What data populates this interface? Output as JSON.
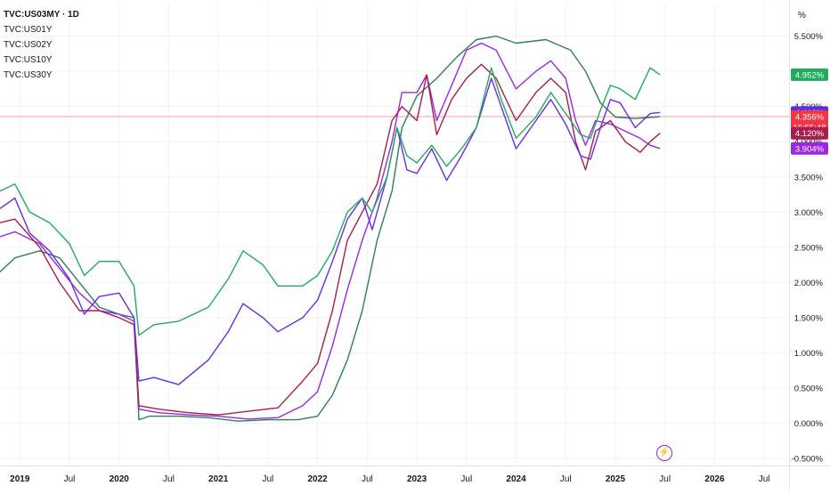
{
  "legend": {
    "main": "TVC:US03MY · 1D",
    "items": [
      "TVC:US01Y",
      "TVC:US02Y",
      "TVC:US10Y",
      "TVC:US30Y"
    ]
  },
  "price_axis": {
    "unit_label": "%",
    "ticks": [
      "5.500%",
      "5.000%",
      "4.500%",
      "4.000%",
      "3.500%",
      "3.000%",
      "2.500%",
      "2.000%",
      "1.500%",
      "1.000%",
      "0.500%",
      "0.000%",
      "-0.500%"
    ]
  },
  "time_axis": {
    "ticks": [
      "2019",
      "Jul",
      "2020",
      "Jul",
      "2021",
      "Jul",
      "2022",
      "Jul",
      "2023",
      "Jul",
      "2024",
      "Jul",
      "2025",
      "Jul",
      "2026",
      "Jul"
    ]
  },
  "badges": [
    {
      "name": "badge-us30y",
      "label": "4.952%",
      "color": "#22ab5d"
    },
    {
      "name": "badge-us10y",
      "label": "4.416%",
      "color": "#5b2ee0"
    },
    {
      "name": "badge-us03my",
      "label": "4.356%",
      "sublabel": "16:55:48",
      "color": "#f23645"
    },
    {
      "name": "badge-us02y",
      "label": "4.120%",
      "color": "#a81d4f"
    },
    {
      "name": "badge-us01y",
      "label": "3.904%",
      "color": "#9c27e0"
    }
  ],
  "flash_icon": "lightning-icon",
  "chart_data": {
    "type": "line",
    "title": "TVC:US03MY · 1D",
    "ylabel": "%",
    "ylim": [
      -0.6,
      5.95
    ],
    "xlim": [
      2018.8,
      2026.75
    ],
    "series": [
      {
        "name": "TVC:US03MY",
        "color": "#2e7d5b",
        "points": [
          [
            2018.8,
            2.15
          ],
          [
            2018.95,
            2.35
          ],
          [
            2019.2,
            2.45
          ],
          [
            2019.4,
            2.35
          ],
          [
            2019.6,
            2.0
          ],
          [
            2019.8,
            1.65
          ],
          [
            2020.0,
            1.55
          ],
          [
            2020.15,
            1.5
          ],
          [
            2020.2,
            0.05
          ],
          [
            2020.3,
            0.1
          ],
          [
            2020.6,
            0.1
          ],
          [
            2020.9,
            0.08
          ],
          [
            2021.2,
            0.03
          ],
          [
            2021.5,
            0.05
          ],
          [
            2021.8,
            0.05
          ],
          [
            2022.0,
            0.1
          ],
          [
            2022.15,
            0.4
          ],
          [
            2022.3,
            0.9
          ],
          [
            2022.45,
            1.6
          ],
          [
            2022.6,
            2.6
          ],
          [
            2022.75,
            3.3
          ],
          [
            2022.85,
            4.2
          ],
          [
            2023.0,
            4.65
          ],
          [
            2023.2,
            4.9
          ],
          [
            2023.4,
            5.2
          ],
          [
            2023.6,
            5.45
          ],
          [
            2023.8,
            5.5
          ],
          [
            2024.0,
            5.4
          ],
          [
            2024.3,
            5.45
          ],
          [
            2024.55,
            5.3
          ],
          [
            2024.7,
            5.0
          ],
          [
            2024.85,
            4.55
          ],
          [
            2025.0,
            4.35
          ],
          [
            2025.2,
            4.33
          ],
          [
            2025.4,
            4.35
          ],
          [
            2025.45,
            4.356
          ]
        ]
      },
      {
        "name": "TVC:US01Y",
        "color": "#9c27e0",
        "points": [
          [
            2018.8,
            2.65
          ],
          [
            2018.95,
            2.72
          ],
          [
            2019.2,
            2.55
          ],
          [
            2019.4,
            2.2
          ],
          [
            2019.6,
            1.85
          ],
          [
            2019.8,
            1.6
          ],
          [
            2020.0,
            1.55
          ],
          [
            2020.15,
            1.45
          ],
          [
            2020.2,
            0.2
          ],
          [
            2020.4,
            0.15
          ],
          [
            2020.7,
            0.12
          ],
          [
            2021.0,
            0.1
          ],
          [
            2021.3,
            0.06
          ],
          [
            2021.6,
            0.08
          ],
          [
            2021.85,
            0.25
          ],
          [
            2022.0,
            0.45
          ],
          [
            2022.15,
            1.1
          ],
          [
            2022.3,
            1.9
          ],
          [
            2022.45,
            2.6
          ],
          [
            2022.6,
            3.2
          ],
          [
            2022.75,
            4.0
          ],
          [
            2022.85,
            4.7
          ],
          [
            2023.0,
            4.7
          ],
          [
            2023.1,
            4.95
          ],
          [
            2023.2,
            4.3
          ],
          [
            2023.35,
            4.8
          ],
          [
            2023.5,
            5.3
          ],
          [
            2023.65,
            5.4
          ],
          [
            2023.8,
            5.3
          ],
          [
            2024.0,
            4.75
          ],
          [
            2024.2,
            5.0
          ],
          [
            2024.35,
            5.15
          ],
          [
            2024.5,
            4.9
          ],
          [
            2024.6,
            4.3
          ],
          [
            2024.7,
            3.95
          ],
          [
            2024.8,
            4.3
          ],
          [
            2024.95,
            4.25
          ],
          [
            2025.1,
            4.15
          ],
          [
            2025.25,
            4.05
          ],
          [
            2025.35,
            3.95
          ],
          [
            2025.45,
            3.904
          ]
        ]
      },
      {
        "name": "TVC:US02Y",
        "color": "#a81d4f",
        "points": [
          [
            2018.8,
            2.85
          ],
          [
            2018.95,
            2.9
          ],
          [
            2019.2,
            2.5
          ],
          [
            2019.4,
            2.0
          ],
          [
            2019.6,
            1.6
          ],
          [
            2019.8,
            1.6
          ],
          [
            2020.0,
            1.5
          ],
          [
            2020.15,
            1.4
          ],
          [
            2020.2,
            0.25
          ],
          [
            2020.4,
            0.2
          ],
          [
            2020.7,
            0.15
          ],
          [
            2021.0,
            0.12
          ],
          [
            2021.3,
            0.17
          ],
          [
            2021.6,
            0.22
          ],
          [
            2021.85,
            0.6
          ],
          [
            2022.0,
            0.85
          ],
          [
            2022.15,
            1.6
          ],
          [
            2022.3,
            2.6
          ],
          [
            2022.45,
            3.0
          ],
          [
            2022.6,
            3.4
          ],
          [
            2022.75,
            4.3
          ],
          [
            2022.85,
            4.5
          ],
          [
            2023.0,
            4.3
          ],
          [
            2023.1,
            4.95
          ],
          [
            2023.2,
            4.1
          ],
          [
            2023.35,
            4.6
          ],
          [
            2023.5,
            4.9
          ],
          [
            2023.65,
            5.1
          ],
          [
            2023.8,
            4.9
          ],
          [
            2024.0,
            4.3
          ],
          [
            2024.2,
            4.7
          ],
          [
            2024.35,
            4.9
          ],
          [
            2024.5,
            4.7
          ],
          [
            2024.6,
            4.0
          ],
          [
            2024.7,
            3.6
          ],
          [
            2024.8,
            4.15
          ],
          [
            2024.95,
            4.3
          ],
          [
            2025.1,
            4.0
          ],
          [
            2025.25,
            3.85
          ],
          [
            2025.35,
            4.0
          ],
          [
            2025.45,
            4.12
          ]
        ]
      },
      {
        "name": "TVC:US10Y",
        "color": "#6a2be8",
        "points": [
          [
            2018.8,
            3.05
          ],
          [
            2018.95,
            3.2
          ],
          [
            2019.1,
            2.7
          ],
          [
            2019.3,
            2.45
          ],
          [
            2019.5,
            2.05
          ],
          [
            2019.65,
            1.55
          ],
          [
            2019.8,
            1.8
          ],
          [
            2020.0,
            1.85
          ],
          [
            2020.15,
            1.5
          ],
          [
            2020.2,
            0.6
          ],
          [
            2020.35,
            0.65
          ],
          [
            2020.6,
            0.55
          ],
          [
            2020.9,
            0.9
          ],
          [
            2021.1,
            1.3
          ],
          [
            2021.25,
            1.7
          ],
          [
            2021.45,
            1.5
          ],
          [
            2021.6,
            1.3
          ],
          [
            2021.85,
            1.5
          ],
          [
            2022.0,
            1.75
          ],
          [
            2022.15,
            2.3
          ],
          [
            2022.3,
            2.9
          ],
          [
            2022.45,
            3.2
          ],
          [
            2022.55,
            2.75
          ],
          [
            2022.7,
            3.5
          ],
          [
            2022.8,
            4.2
          ],
          [
            2022.9,
            3.6
          ],
          [
            2023.0,
            3.55
          ],
          [
            2023.15,
            3.9
          ],
          [
            2023.3,
            3.45
          ],
          [
            2023.45,
            3.8
          ],
          [
            2023.6,
            4.2
          ],
          [
            2023.75,
            4.9
          ],
          [
            2023.85,
            4.5
          ],
          [
            2024.0,
            3.9
          ],
          [
            2024.2,
            4.3
          ],
          [
            2024.35,
            4.6
          ],
          [
            2024.5,
            4.25
          ],
          [
            2024.65,
            3.8
          ],
          [
            2024.75,
            3.75
          ],
          [
            2024.85,
            4.2
          ],
          [
            2024.95,
            4.6
          ],
          [
            2025.05,
            4.55
          ],
          [
            2025.2,
            4.2
          ],
          [
            2025.35,
            4.4
          ],
          [
            2025.45,
            4.416
          ]
        ]
      },
      {
        "name": "TVC:US30Y",
        "color": "#22ab5d",
        "points": [
          [
            2018.8,
            3.3
          ],
          [
            2018.95,
            3.4
          ],
          [
            2019.1,
            3.0
          ],
          [
            2019.3,
            2.85
          ],
          [
            2019.5,
            2.55
          ],
          [
            2019.65,
            2.1
          ],
          [
            2019.8,
            2.3
          ],
          [
            2020.0,
            2.3
          ],
          [
            2020.15,
            1.95
          ],
          [
            2020.2,
            1.25
          ],
          [
            2020.35,
            1.4
          ],
          [
            2020.6,
            1.45
          ],
          [
            2020.9,
            1.65
          ],
          [
            2021.1,
            2.05
          ],
          [
            2021.25,
            2.45
          ],
          [
            2021.45,
            2.25
          ],
          [
            2021.6,
            1.95
          ],
          [
            2021.85,
            1.95
          ],
          [
            2022.0,
            2.1
          ],
          [
            2022.15,
            2.45
          ],
          [
            2022.3,
            3.0
          ],
          [
            2022.45,
            3.2
          ],
          [
            2022.55,
            3.0
          ],
          [
            2022.7,
            3.5
          ],
          [
            2022.8,
            4.2
          ],
          [
            2022.9,
            3.8
          ],
          [
            2023.0,
            3.7
          ],
          [
            2023.15,
            3.95
          ],
          [
            2023.3,
            3.65
          ],
          [
            2023.45,
            3.9
          ],
          [
            2023.6,
            4.2
          ],
          [
            2023.75,
            5.05
          ],
          [
            2023.85,
            4.6
          ],
          [
            2024.0,
            4.05
          ],
          [
            2024.2,
            4.35
          ],
          [
            2024.35,
            4.7
          ],
          [
            2024.5,
            4.4
          ],
          [
            2024.65,
            4.1
          ],
          [
            2024.75,
            4.05
          ],
          [
            2024.85,
            4.45
          ],
          [
            2024.95,
            4.8
          ],
          [
            2025.05,
            4.75
          ],
          [
            2025.2,
            4.6
          ],
          [
            2025.35,
            5.05
          ],
          [
            2025.45,
            4.952
          ]
        ]
      }
    ]
  }
}
